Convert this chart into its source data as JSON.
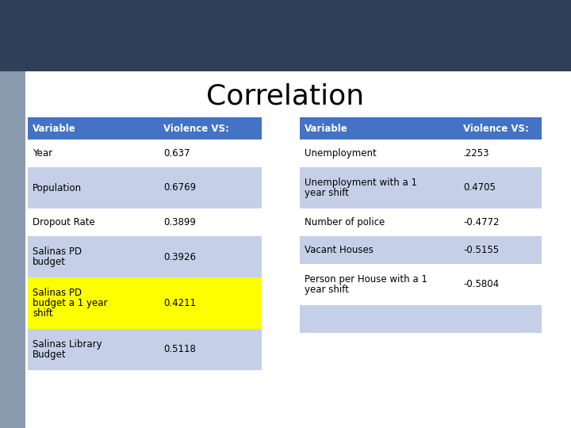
{
  "title": "Correlation",
  "title_fontsize": 26,
  "header_color": "#4472C4",
  "header_text_color": "#FFFFFF",
  "row_light": "#C5D0E8",
  "row_white": "#FFFFFF",
  "highlight_color": "#FFFF00",
  "text_color": "#000000",
  "top_bar_color": "#2E4057",
  "bg_color": "#FFFFFF",
  "side_bg_color": "#8A9BB0",
  "left_table": {
    "headers": [
      "Variable",
      "Violence VS:"
    ],
    "rows": [
      [
        "Year",
        "0.637",
        false
      ],
      [
        "Population",
        "0.6769",
        false
      ],
      [
        "Dropout Rate",
        "0.3899",
        false
      ],
      [
        "Salinas PD\nbudget",
        "0.3926",
        false
      ],
      [
        "Salinas PD\nbudget a 1 year\nshift",
        "0.4211",
        true
      ],
      [
        "Salinas Library\nBudget",
        "0.5118",
        false
      ]
    ]
  },
  "right_table": {
    "headers": [
      "Variable",
      "Violence VS:"
    ],
    "rows": [
      [
        "Unemployment",
        ".2253",
        false
      ],
      [
        "Unemployment with a 1\nyear shift",
        "0.4705",
        false
      ],
      [
        "Number of police",
        "-0.4772",
        false
      ],
      [
        "Vacant Houses",
        "-0.5155",
        false
      ],
      [
        "Person per House with a 1\nyear shift",
        "-0.5804",
        false
      ],
      [
        "",
        "",
        false
      ]
    ]
  }
}
